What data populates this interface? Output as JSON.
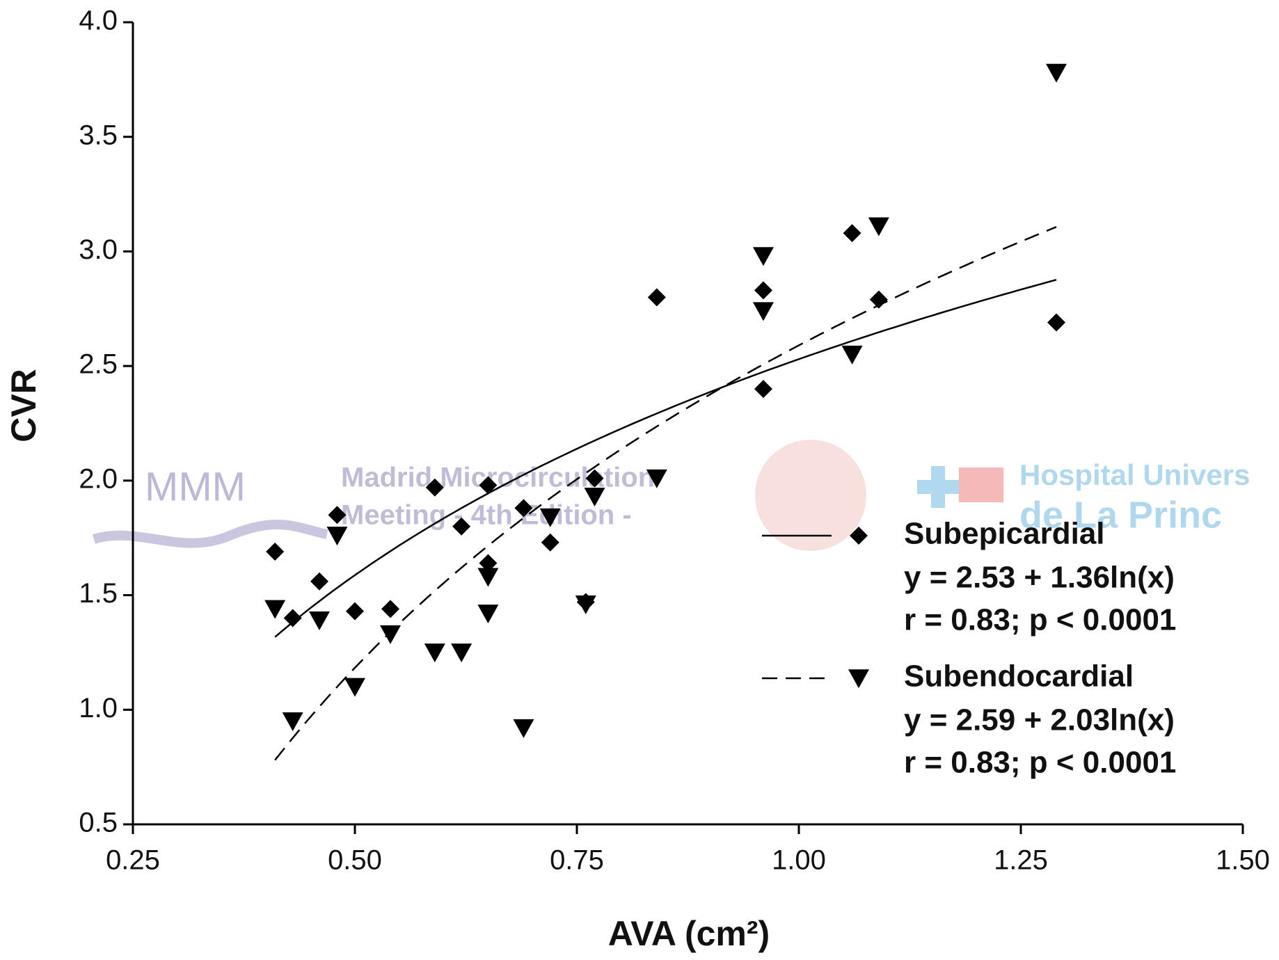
{
  "chart_data": {
    "type": "scatter",
    "x_label": "AVA (cm²)",
    "y_label": "CVR",
    "xlim": [
      0.25,
      1.5
    ],
    "xticks": [
      {
        "value": 0.25,
        "label": "0.25"
      },
      {
        "value": 0.5,
        "label": "0.50"
      },
      {
        "value": 0.75,
        "label": "0.75"
      },
      {
        "value": 1.0,
        "label": "1.00"
      },
      {
        "value": 1.25,
        "label": "1.25"
      },
      {
        "value": 1.5,
        "label": "1.50"
      }
    ],
    "ylim": [
      0.5,
      4.0
    ],
    "yticks": [
      0.5,
      {
        "value": 1.0,
        "label": "1.0"
      },
      1.5,
      {
        "value": 2.0,
        "label": "2.0"
      },
      2.5,
      {
        "value": 3.0,
        "label": "3.0"
      },
      3.5,
      {
        "value": 4.0,
        "label": "4.0"
      }
    ],
    "x": [
      0.41,
      0.43,
      0.46,
      0.48,
      0.5,
      0.54,
      0.59,
      0.62,
      0.65,
      0.65,
      0.69,
      0.72,
      0.76,
      0.77,
      0.84,
      0.96,
      0.96,
      1.06,
      1.09,
      1.29
    ],
    "series": [
      {
        "name": "Subepicardial",
        "color": "#000000",
        "marker": "diamond",
        "line_style": "solid",
        "equation": "y = 2.53 + 1.36ln(x)",
        "stats": "r = 0.83; p < 0.0001",
        "fit": {
          "a": 2.53,
          "b": 1.36
        },
        "values": [
          1.69,
          1.4,
          1.56,
          1.85,
          1.43,
          1.44,
          1.97,
          1.8,
          1.98,
          1.64,
          1.88,
          1.73,
          1.47,
          2.01,
          2.8,
          2.83,
          2.4,
          3.08,
          2.79,
          2.69
        ]
      },
      {
        "name": "Subendocardial",
        "color": "#000000",
        "marker": "triangle-down",
        "line_style": "dashed",
        "equation": "y = 2.59 + 2.03ln(x)",
        "stats": "r = 0.83; p < 0.0001",
        "fit": {
          "a": 2.59,
          "b": 2.03
        },
        "values": [
          1.44,
          0.95,
          1.39,
          1.76,
          1.1,
          1.33,
          1.25,
          1.25,
          1.42,
          1.58,
          0.92,
          1.84,
          1.46,
          1.93,
          2.01,
          2.98,
          2.74,
          2.55,
          3.11,
          3.78
        ]
      }
    ],
    "watermark": [
      "MMM",
      "Madrid Microcirculation",
      "Meeting - 4th Edition -",
      "Hospital Univers",
      "de La Princ"
    ]
  }
}
